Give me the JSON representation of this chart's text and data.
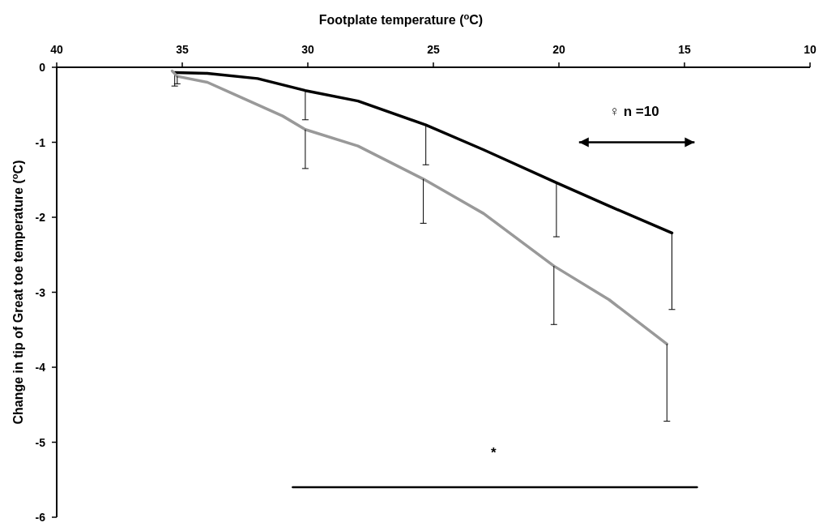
{
  "chart_data": {
    "type": "line",
    "xlabel": "Footplate temperature ($^{o}$C)",
    "ylabel": "Change in tip of Great toe temperature ($^{o}$C)",
    "xlim": [
      40,
      10
    ],
    "xticks": [
      40,
      35,
      30,
      25,
      20,
      15,
      10
    ],
    "ylim": [
      -6,
      0
    ],
    "yticks": [
      -6,
      -5,
      -4,
      -3,
      -2,
      -1,
      0
    ],
    "series": [
      {
        "color": "#000000",
        "x": [
          35.3,
          34,
          32,
          30.1,
          28,
          25.3,
          23,
          20.1,
          18,
          15.5
        ],
        "values": [
          -0.07,
          -0.08,
          -0.15,
          -0.31,
          -0.45,
          -0.77,
          -1.1,
          -1.54,
          -1.85,
          -2.21
        ],
        "errors": [
          [
            -0.25,
            -0.07
          ],
          null,
          null,
          [
            -0.7,
            -0.31
          ],
          null,
          [
            -1.3,
            -0.77
          ],
          null,
          [
            -2.26,
            -1.54
          ],
          null,
          [
            -3.23,
            -2.21
          ]
        ]
      },
      {
        "color": "#999999",
        "x": [
          35.4,
          35.2,
          34,
          33,
          31,
          30.1,
          28,
          25.4,
          23,
          20.2,
          18,
          15.7
        ],
        "values": [
          -0.05,
          -0.12,
          -0.2,
          -0.35,
          -0.65,
          -0.83,
          -1.05,
          -1.49,
          -1.95,
          -2.65,
          -3.1,
          -3.69
        ],
        "errors": [
          null,
          [
            -0.22,
            -0.12
          ],
          null,
          null,
          null,
          [
            -1.35,
            -0.83
          ],
          null,
          [
            -2.08,
            -1.49
          ],
          null,
          [
            -3.43,
            -2.65
          ],
          null,
          [
            -4.72,
            -3.69
          ]
        ]
      },
      {
        "color": "#000000",
        "x": [
          30.6,
          14.5
        ],
        "values": [
          -5.6,
          -5.6
        ]
      }
    ],
    "annotations": [
      "♀ n =10",
      "*"
    ]
  }
}
